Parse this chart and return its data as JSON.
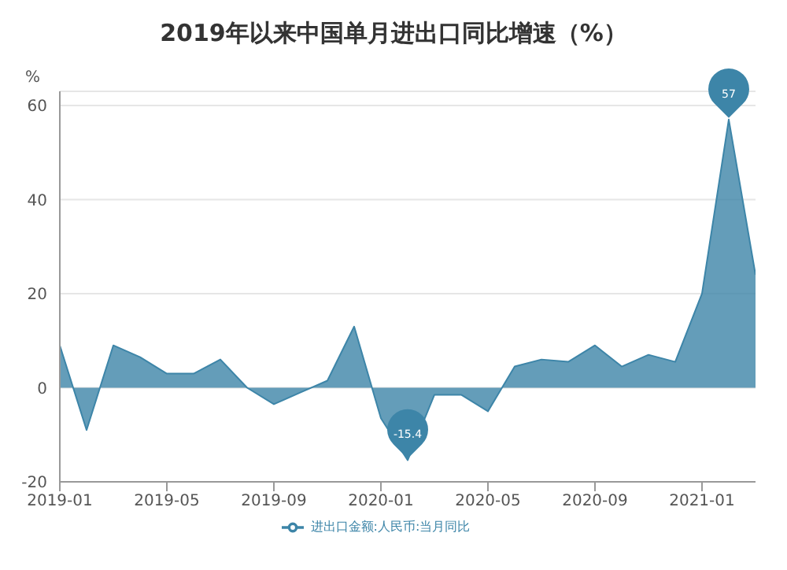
{
  "chart_data": {
    "type": "area",
    "title": "2019年以来中国单月进出口同比增速（%）",
    "ylabel": "%",
    "x": [
      "2019-01",
      "2019-02",
      "2019-03",
      "2019-04",
      "2019-05",
      "2019-06",
      "2019-07",
      "2019-08",
      "2019-09",
      "2019-10",
      "2019-11",
      "2019-12",
      "2020-01",
      "2020-02",
      "2020-03",
      "2020-04",
      "2020-05",
      "2020-06",
      "2020-07",
      "2020-08",
      "2020-09",
      "2020-10",
      "2020-11",
      "2020-12",
      "2021-01",
      "2021-02",
      "2021-03"
    ],
    "series": [
      {
        "name": "进出口金额:人民币:当月同比",
        "color": "#3d85a8",
        "values": [
          9,
          -9,
          9,
          6.5,
          3,
          3,
          6,
          0,
          -3.5,
          -1,
          1.5,
          13,
          -6.5,
          -15.4,
          -1.5,
          -1.5,
          -5,
          4.5,
          6,
          5.5,
          9,
          4.5,
          7,
          5.5,
          20,
          57,
          24
        ],
        "value_labels": [
          null,
          null,
          null,
          null,
          null,
          null,
          null,
          null,
          null,
          null,
          null,
          null,
          null,
          "-15.4",
          null,
          null,
          null,
          null,
          null,
          null,
          null,
          null,
          null,
          null,
          null,
          "57",
          null
        ]
      }
    ],
    "xlim": [
      "2019-01",
      "2021-03"
    ],
    "xticks": [
      {
        "value": "2019-01",
        "label": "2019-01"
      },
      {
        "value": "2019-05",
        "label": "2019-05"
      },
      {
        "value": "2019-09",
        "label": "2019-09"
      },
      {
        "value": "2020-01",
        "label": "2020-01"
      },
      {
        "value": "2020-05",
        "label": "2020-05"
      },
      {
        "value": "2020-09",
        "label": "2020-09"
      },
      {
        "value": "2021-01",
        "label": "2021-01"
      }
    ],
    "ylim": [
      -20,
      63
    ],
    "yticks": [
      -20,
      0,
      20,
      40,
      60
    ],
    "grid": "y",
    "legend": "bottom",
    "marker": "none"
  }
}
